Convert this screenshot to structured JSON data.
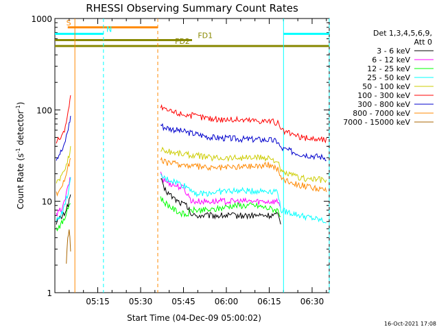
{
  "chart_data": {
    "type": "line",
    "title": "RHESSI Observing Summary Count Rates",
    "xlabel": "Start Time (04-Dec-09 05:00:02)",
    "ylabel_main": "Count Rate (s",
    "ylabel_sup1": "-1",
    "ylabel_mid": " detector",
    "ylabel_sup2": "-1",
    "ylabel_end": ")",
    "y_scale": "log",
    "xlim": [
      0,
      96
    ],
    "ylim": [
      1,
      1000
    ],
    "x_unit": "minutes after 05:00:02",
    "x_ticks": [
      {
        "value": 15,
        "label": "05:15"
      },
      {
        "value": 30,
        "label": "05:30"
      },
      {
        "value": 45,
        "label": "05:45"
      },
      {
        "value": 60,
        "label": "06:00"
      },
      {
        "value": 75,
        "label": "06:15"
      },
      {
        "value": 90,
        "label": "06:30"
      }
    ],
    "y_ticks": [
      {
        "value": 1,
        "label": "1"
      },
      {
        "value": 10,
        "label": "10"
      },
      {
        "value": 100,
        "label": "100"
      },
      {
        "value": 1000,
        "label": "1000"
      }
    ],
    "legend_header": [
      "Det 1,3,4,5,6,9,",
      "Att 0"
    ],
    "legend_position": "right",
    "series": [
      {
        "name": "3 - 6 keV",
        "color": "#000000",
        "points": [
          [
            0.5,
            6
          ],
          [
            3,
            7
          ],
          [
            5,
            10
          ],
          [
            5.5,
            12
          ],
          [
            37,
            18
          ],
          [
            38,
            14
          ],
          [
            40,
            12
          ],
          [
            43,
            10
          ],
          [
            46,
            9
          ],
          [
            48,
            7
          ],
          [
            55,
            7
          ],
          [
            62,
            7
          ],
          [
            70,
            7
          ],
          [
            78,
            7
          ],
          [
            79,
            6
          ]
        ]
      },
      {
        "name": "6 - 12 keV",
        "color": "#ff00ff",
        "points": [
          [
            0.5,
            7
          ],
          [
            3,
            9
          ],
          [
            5,
            16
          ],
          [
            5.5,
            18
          ],
          [
            37,
            21
          ],
          [
            38,
            17
          ],
          [
            42,
            15
          ],
          [
            45,
            14
          ],
          [
            48,
            10
          ],
          [
            55,
            10
          ],
          [
            62,
            10
          ],
          [
            70,
            10
          ],
          [
            78,
            10
          ],
          [
            79,
            9
          ]
        ]
      },
      {
        "name": "12 - 25 keV",
        "color": "#00ff00",
        "points": [
          [
            0.5,
            5
          ],
          [
            3,
            6
          ],
          [
            5,
            9
          ],
          [
            5.5,
            10
          ],
          [
            37,
            11
          ],
          [
            38,
            10
          ],
          [
            42,
            8
          ],
          [
            46,
            7
          ],
          [
            48,
            8
          ],
          [
            55,
            8
          ],
          [
            62,
            9
          ],
          [
            70,
            9
          ],
          [
            78,
            8
          ],
          [
            79,
            7
          ]
        ]
      },
      {
        "name": "25 - 50 keV",
        "color": "#00ffff",
        "points": [
          [
            0.5,
            6
          ],
          [
            3,
            8
          ],
          [
            5,
            14
          ],
          [
            5.5,
            17
          ],
          [
            37,
            19
          ],
          [
            38,
            18
          ],
          [
            43,
            16
          ],
          [
            47,
            14
          ],
          [
            50,
            12
          ],
          [
            60,
            13
          ],
          [
            70,
            13
          ],
          [
            78,
            13
          ],
          [
            79,
            8
          ],
          [
            86,
            7
          ],
          [
            95,
            6
          ]
        ]
      },
      {
        "name": "50 - 100 keV",
        "color": "#cccc00",
        "points": [
          [
            0.5,
            16
          ],
          [
            3,
            20
          ],
          [
            5,
            32
          ],
          [
            5.5,
            38
          ],
          [
            37,
            38
          ],
          [
            38,
            36
          ],
          [
            45,
            33
          ],
          [
            55,
            30
          ],
          [
            65,
            30
          ],
          [
            75,
            30
          ],
          [
            78,
            27
          ],
          [
            79,
            21
          ],
          [
            86,
            18
          ],
          [
            95,
            17
          ]
        ]
      },
      {
        "name": "100 - 300 keV",
        "color": "#ff0000",
        "points": [
          [
            0.5,
            45
          ],
          [
            3,
            55
          ],
          [
            5,
            110
          ],
          [
            5.5,
            140
          ],
          [
            37,
            110
          ],
          [
            38,
            100
          ],
          [
            45,
            90
          ],
          [
            55,
            80
          ],
          [
            65,
            78
          ],
          [
            75,
            76
          ],
          [
            78,
            72
          ],
          [
            79,
            60
          ],
          [
            86,
            50
          ],
          [
            95,
            47
          ]
        ]
      },
      {
        "name": "300 - 800 keV",
        "color": "#0000cc",
        "points": [
          [
            0.5,
            30
          ],
          [
            3,
            38
          ],
          [
            5,
            70
          ],
          [
            5.5,
            85
          ],
          [
            37,
            70
          ],
          [
            38,
            65
          ],
          [
            45,
            58
          ],
          [
            55,
            50
          ],
          [
            65,
            48
          ],
          [
            75,
            47
          ],
          [
            78,
            45
          ],
          [
            79,
            38
          ],
          [
            86,
            33
          ],
          [
            95,
            30
          ]
        ]
      },
      {
        "name": "800 - 7000 keV",
        "color": "#ff8800",
        "points": [
          [
            0.5,
            12
          ],
          [
            3,
            16
          ],
          [
            5,
            26
          ],
          [
            5.5,
            30
          ],
          [
            37,
            28
          ],
          [
            38,
            27
          ],
          [
            45,
            25
          ],
          [
            55,
            23
          ],
          [
            65,
            24
          ],
          [
            75,
            25
          ],
          [
            78,
            23
          ],
          [
            79,
            18
          ],
          [
            86,
            15
          ],
          [
            95,
            13
          ]
        ]
      },
      {
        "name": "7000 - 15000 keV",
        "color": "#aa6600",
        "points": [
          [
            4,
            2
          ],
          [
            4.5,
            4
          ],
          [
            5,
            5
          ],
          [
            5.5,
            3
          ]
        ]
      }
    ],
    "state_bars": [
      {
        "label": "S",
        "color": "#ff8800",
        "y": 800,
        "segments": [
          [
            4.5,
            36
          ]
        ],
        "label_x": 4
      },
      {
        "label": "N",
        "color": "#00ffff",
        "y": 680,
        "segments": [
          [
            0,
            17
          ],
          [
            80,
            96
          ]
        ],
        "label_x": 18
      },
      {
        "label": "FD1",
        "color": "#888800",
        "y": 580,
        "segments": [
          [
            0,
            48
          ]
        ],
        "label_x": 50
      },
      {
        "label": "FD2",
        "color": "#888800",
        "y": 500,
        "segments": [
          [
            0,
            96
          ]
        ],
        "label_x": 42
      }
    ],
    "vlines": [
      {
        "x": 7,
        "color": "#ff8800",
        "style": "solid"
      },
      {
        "x": 17,
        "color": "#00ffff",
        "style": "dashed"
      },
      {
        "x": 36,
        "color": "#ff8800",
        "style": "dashed"
      },
      {
        "x": 80,
        "color": "#00ffff",
        "style": "solid"
      },
      {
        "x": 96,
        "color": "#00ffff",
        "style": "dashed"
      }
    ]
  },
  "footer": {
    "timestamp": "16-Oct-2021 17:08"
  }
}
